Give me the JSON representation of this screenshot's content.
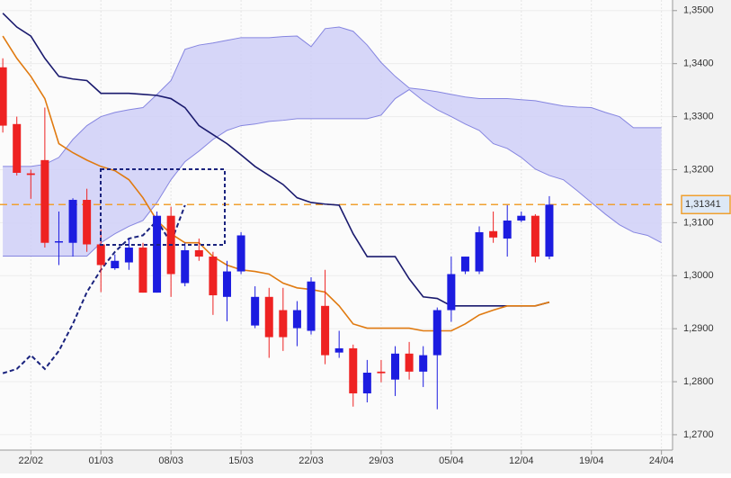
{
  "chart_data": {
    "type": "candlestick",
    "x": [
      0,
      1,
      2,
      3,
      4,
      5,
      6,
      7,
      8,
      9,
      10,
      11,
      12,
      13,
      14,
      15,
      16,
      17,
      18,
      19,
      20,
      21,
      22,
      23,
      24,
      25,
      26,
      27,
      28,
      29,
      30,
      31,
      32,
      33,
      34,
      35,
      36,
      37,
      38,
      39,
      40,
      41,
      42,
      43,
      44,
      45,
      46,
      47
    ],
    "open": [
      1.3393,
      1.3286,
      1.3193,
      1.3218,
      1.3063,
      1.3062,
      1.3143,
      1.3059,
      1.3014,
      1.3025,
      1.3053,
      1.2968,
      1.3113,
      1.2986,
      1.3048,
      1.3036,
      1.296,
      1.3008,
      1.2906,
      1.296,
      1.2935,
      1.2901,
      1.2896,
      1.2943,
      1.2855,
      1.2863,
      1.2778,
      1.2819,
      1.2804,
      1.2853,
      1.2819,
      1.285,
      1.2935,
      1.3008,
      1.3008,
      1.3084,
      1.307,
      1.3104,
      1.3113,
      1.3036,
      null,
      null,
      null,
      null,
      null,
      null,
      null,
      null
    ],
    "high": [
      1.341,
      1.33,
      1.32,
      1.3317,
      1.3121,
      1.3146,
      1.3164,
      1.3087,
      1.304,
      1.307,
      1.3062,
      1.3121,
      1.313,
      1.3062,
      1.307,
      1.3045,
      1.3028,
      1.3082,
      1.298,
      1.2977,
      1.2977,
      1.2952,
      1.2997,
      1.3011,
      1.2896,
      1.287,
      1.2841,
      1.2841,
      1.2867,
      1.2875,
      1.2867,
      1.294,
      1.3036,
      1.3036,
      1.3093,
      1.3121,
      1.3133,
      1.3121,
      1.3116,
      1.315,
      null,
      null,
      null,
      null,
      null,
      null,
      null,
      null
    ],
    "low": [
      1.327,
      1.3189,
      1.3145,
      1.3053,
      1.302,
      1.3036,
      1.3045,
      1.2969,
      1.3011,
      1.3011,
      1.2968,
      1.2968,
      1.296,
      1.298,
      1.3028,
      1.2926,
      1.2914,
      1.3003,
      1.2901,
      1.2845,
      1.2858,
      1.2867,
      1.2889,
      1.2833,
      1.2845,
      1.2753,
      1.2761,
      1.2799,
      1.2773,
      1.2804,
      1.279,
      1.2748,
      1.2913,
      1.3003,
      1.3003,
      1.3062,
      1.3036,
      1.3101,
      1.3025,
      1.3031,
      null,
      null,
      null,
      null,
      null,
      null,
      null,
      null
    ],
    "close": [
      1.3283,
      1.3194,
      1.319,
      1.3062,
      1.3065,
      1.3143,
      1.3059,
      1.302,
      1.3028,
      1.3053,
      1.2968,
      1.3113,
      1.3003,
      1.3048,
      1.3036,
      1.2963,
      1.3008,
      1.3076,
      1.296,
      1.2884,
      1.2884,
      1.2935,
      1.2989,
      1.285,
      1.2863,
      1.2778,
      1.2817,
      1.2816,
      1.2853,
      1.2819,
      1.285,
      1.2935,
      1.3003,
      1.3036,
      1.3082,
      1.3072,
      1.3104,
      1.3113,
      1.3036,
      1.3134,
      null,
      null,
      null,
      null,
      null,
      null,
      null,
      null
    ],
    "up_color": "#1c1ce0",
    "down_color": "#ee2222",
    "series": [
      {
        "color": "#1a1a6e",
        "style": "solid",
        "values": [
          1.3495,
          1.3469,
          1.3452,
          1.341,
          1.3376,
          1.3371,
          1.3368,
          1.3344,
          1.3344,
          1.3344,
          1.3342,
          1.334,
          1.3334,
          1.3317,
          1.3283,
          1.3266,
          1.3249,
          1.3228,
          1.3206,
          1.3189,
          1.3172,
          1.3147,
          1.3138,
          1.3135,
          1.3133,
          1.3079,
          1.3036,
          1.3036,
          1.3036,
          1.2994,
          1.296,
          1.2957,
          1.2943,
          1.2943,
          1.2943,
          1.2943,
          1.2943,
          1.2943,
          1.2943,
          1.295,
          null,
          null,
          null,
          null,
          null,
          null,
          null,
          null
        ]
      },
      {
        "color": "#e07a10",
        "style": "solid",
        "values": [
          1.3452,
          1.341,
          1.3376,
          1.3334,
          1.3249,
          1.3232,
          1.3218,
          1.3206,
          1.3198,
          1.3181,
          1.3147,
          1.3104,
          1.3079,
          1.3062,
          1.3062,
          1.3036,
          1.302,
          1.3011,
          1.3008,
          1.3003,
          1.2986,
          1.2977,
          1.2974,
          1.2969,
          1.2943,
          1.2909,
          1.2901,
          1.2901,
          1.2901,
          1.2901,
          1.2896,
          1.2896,
          1.2896,
          1.2909,
          1.2926,
          1.2935,
          1.2943,
          1.2943,
          1.2943,
          1.295,
          null,
          null,
          null,
          null,
          null,
          null,
          null,
          null
        ]
      },
      {
        "color": "#1a237e",
        "style": "dashed",
        "values": [
          1.2816,
          1.2824,
          1.285,
          1.2824,
          1.2858,
          1.2909,
          1.2969,
          1.3011,
          1.3045,
          1.307,
          1.3076,
          1.3104,
          1.3062,
          1.3133,
          null,
          null,
          null,
          null,
          null,
          null,
          null,
          null,
          null,
          null,
          null,
          null,
          null,
          null,
          null,
          null,
          null,
          null,
          null,
          null,
          null,
          null,
          null,
          null,
          null,
          null,
          null,
          null,
          null,
          null,
          null,
          null,
          null,
          null
        ]
      }
    ],
    "cloud": {
      "fill": "#cfcff7",
      "stroke": "#8585e0",
      "upper": [
        1.3206,
        1.3206,
        1.3206,
        1.321,
        1.3223,
        1.3257,
        1.3283,
        1.33,
        1.3308,
        1.3313,
        1.3317,
        1.3342,
        1.3368,
        1.3427,
        1.3435,
        1.3439,
        1.3444,
        1.3449,
        1.3449,
        1.3449,
        1.3451,
        1.3452,
        1.3432,
        1.3466,
        1.3469,
        1.3461,
        1.3435,
        1.3402,
        1.3376,
        1.3354,
        1.3351,
        1.3347,
        1.3342,
        1.3337,
        1.3334,
        1.3334,
        1.3334,
        1.3332,
        1.333,
        1.3325,
        1.332,
        1.3318,
        1.3317,
        1.3308,
        1.33,
        1.3279,
        1.3279,
        1.3279
      ],
      "lower": [
        1.3037,
        1.3037,
        1.3037,
        1.3037,
        1.3037,
        1.3037,
        1.3037,
        1.3062,
        1.3079,
        1.3093,
        1.3104,
        1.3138,
        1.3181,
        1.3215,
        1.3235,
        1.3257,
        1.3274,
        1.3283,
        1.3286,
        1.3291,
        1.3293,
        1.3296,
        1.3296,
        1.3296,
        1.3296,
        1.3296,
        1.3296,
        1.3303,
        1.3334,
        1.3351,
        1.333,
        1.3313,
        1.33,
        1.3286,
        1.3274,
        1.3249,
        1.324,
        1.3223,
        1.3201,
        1.3189,
        1.3181,
        1.316,
        1.3138,
        1.3116,
        1.3096,
        1.3082,
        1.3076,
        1.3062
      ]
    },
    "last_price": {
      "value": 1.31341,
      "label": "1,31341"
    },
    "last_price_color": "#f0a030",
    "xlim": [
      -0.2,
      47.6
    ],
    "ylim": [
      1.2671,
      1.352
    ],
    "xticks": [
      {
        "value": 2,
        "label": "22/02"
      },
      {
        "value": 7,
        "label": "01/03"
      },
      {
        "value": 12,
        "label": "08/03"
      },
      {
        "value": 17,
        "label": "15/03"
      },
      {
        "value": 22,
        "label": "22/03"
      },
      {
        "value": 27,
        "label": "29/03"
      },
      {
        "value": 32,
        "label": "05/04"
      },
      {
        "value": 37,
        "label": "12/04"
      },
      {
        "value": 42,
        "label": "19/04"
      },
      {
        "value": 47,
        "label": "24/04"
      }
    ],
    "yticks": [
      {
        "value": 1.35,
        "label": "1,3500"
      },
      {
        "value": 1.34,
        "label": "1,3400"
      },
      {
        "value": 1.33,
        "label": "1,3300"
      },
      {
        "value": 1.32,
        "label": "1,3200"
      },
      {
        "value": 1.31,
        "label": "1,3100"
      },
      {
        "value": 1.3,
        "label": "1,3000"
      },
      {
        "value": 1.29,
        "label": "1,2900"
      },
      {
        "value": 1.28,
        "label": "1,2800"
      },
      {
        "value": 1.27,
        "label": "1,2700"
      }
    ],
    "grid": true
  }
}
